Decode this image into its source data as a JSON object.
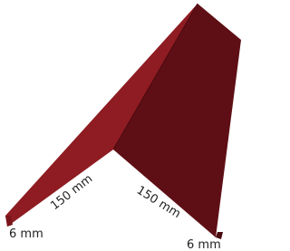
{
  "dimensions": {
    "left_width": "150 mm",
    "right_width": "150 mm",
    "left_hem": "6 mm",
    "right_hem": "6 mm"
  }
}
